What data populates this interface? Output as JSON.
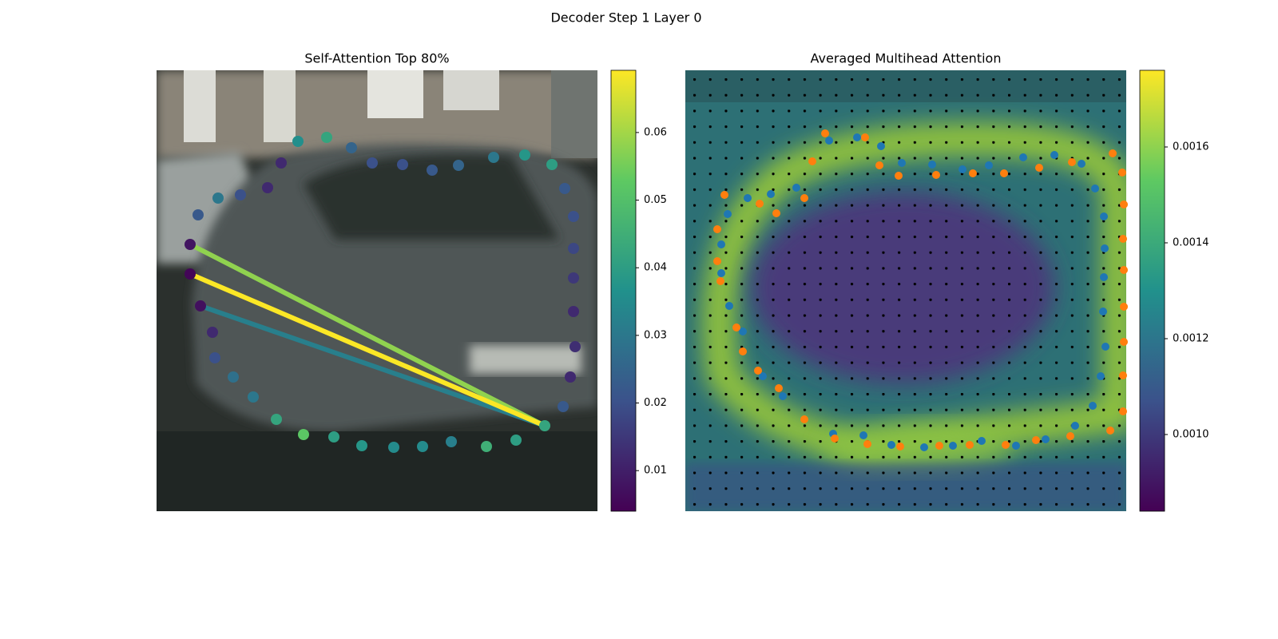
{
  "title": "Decoder Step 1 Layer 0",
  "chart_data": [
    {
      "type": "scatter",
      "title": "Self-Attention Top 80%",
      "xlim": [
        0,
        552
      ],
      "ylim": [
        552,
        0
      ],
      "colormap": "viridis",
      "clim": [
        0.004,
        0.0692
      ],
      "cticks": [
        0.01,
        0.02,
        0.03,
        0.04,
        0.05,
        0.06
      ],
      "series": [
        {
          "x": [
            42,
            42,
            55,
            70,
            73,
            96,
            121,
            150,
            184,
            222,
            257,
            297,
            333,
            369,
            413,
            450,
            486,
            509,
            518,
            524,
            522,
            522,
            522,
            522,
            511,
            495,
            461,
            422,
            378,
            345,
            308,
            270,
            244,
            213,
            177,
            156,
            139,
            105,
            77,
            52
          ],
          "y": [
            297,
            334,
            257,
            224,
            192,
            168,
            143,
            115,
            96,
            93,
            82,
            80,
            81,
            87,
            81,
            89,
            107,
            131,
            168,
            206,
            250,
            292,
            329,
            369,
            404,
            434,
            446,
            443,
            433,
            427,
            434,
            436,
            455,
            468,
            463,
            436,
            405,
            396,
            392,
            371
          ],
          "values": [
            0.005,
            0.008,
            0.007,
            0.012,
            0.02,
            0.028,
            0.03,
            0.042,
            0.052,
            0.04,
            0.038,
            0.035,
            0.035,
            0.032,
            0.045,
            0.04,
            0.042,
            0.022,
            0.012,
            0.013,
            0.012,
            0.015,
            0.018,
            0.02,
            0.022,
            0.04,
            0.038,
            0.03,
            0.025,
            0.022,
            0.02,
            0.02,
            0.025,
            0.042,
            0.036,
            0.012,
            0.012,
            0.02,
            0.03,
            0.022
          ]
        }
      ],
      "lines": [
        {
          "x": [
            486,
            55
          ],
          "y": [
            107,
            257
          ],
          "value": 0.032
        },
        {
          "x": [
            486,
            42
          ],
          "y": [
            107,
            334
          ],
          "value": 0.058
        },
        {
          "x": [
            486,
            42
          ],
          "y": [
            107,
            297
          ],
          "value": 0.069
        }
      ]
    },
    {
      "type": "scatter",
      "title": "Averaged Multihead Attention",
      "xlim": [
        0,
        552
      ],
      "ylim": [
        552,
        0
      ],
      "colormap": "viridis",
      "clim": [
        0.00084,
        0.00176
      ],
      "cticks": [
        {
          "value": 0.001,
          "label": "0.0010"
        },
        0.0012,
        0.0014,
        0.0016
      ],
      "series": [
        {
          "color": "#1f77b4",
          "x": [
            185,
            223,
            258,
            299,
            335,
            371,
            414,
            451,
            488,
            510,
            520,
            526,
            523,
            524,
            525,
            524,
            513,
            496,
            462,
            423,
            380,
            347,
            309,
            271,
            245,
            215,
            180,
            139,
            107,
            78,
            53,
            45,
            45,
            55,
            72,
            97,
            122
          ],
          "y": [
            97,
            95,
            83,
            80,
            82,
            88,
            82,
            90,
            107,
            132,
            169,
            206,
            250,
            293,
            329,
            369,
            404,
            435,
            446,
            443,
            433,
            428,
            434,
            436,
            457,
            468,
            464,
            405,
            397,
            392,
            372,
            334,
            298,
            257,
            225,
            169,
            144
          ]
        },
        {
          "color": "#ff7f0e",
          "x": [
            187,
            228,
            269,
            318,
            356,
            401,
            439,
            482,
            532,
            548,
            548,
            549,
            549,
            549,
            548,
            549,
            547,
            535,
            484,
            443,
            399,
            360,
            314,
            267,
            243,
            225,
            175,
            159,
            149,
            114,
            93,
            49,
            40,
            40,
            44,
            64,
            72,
            91,
            117,
            149
          ],
          "y": [
            91,
            84,
            81,
            82,
            83,
            83,
            89,
            94,
            101,
            125,
            170,
            212,
            256,
            302,
            341,
            384,
            424,
            448,
            437,
            430,
            423,
            423,
            421,
            420,
            433,
            468,
            473,
            438,
            392,
            373,
            385,
            396,
            353,
            313,
            288,
            230,
            200,
            176,
            154,
            115
          ]
        }
      ]
    }
  ]
}
